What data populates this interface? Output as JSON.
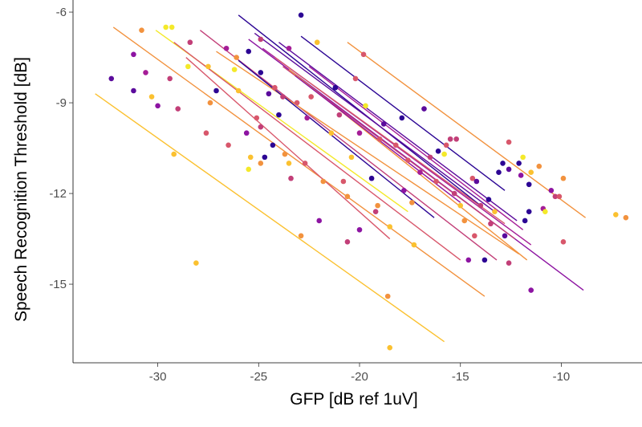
{
  "chart_data": {
    "type": "scatter",
    "title": "",
    "xlabel": "GFP [dB ref 1uV]",
    "ylabel": "Speech Recognition Threshold [dB]",
    "xlim": [
      -34.2,
      -6.0
    ],
    "ylim": [
      -17.6,
      -5.6
    ],
    "xticks": [
      -30,
      -25,
      -20,
      -15,
      -10
    ],
    "yticks": [
      -6,
      -9,
      -12,
      -15
    ],
    "x_tick_labels": [
      "-30",
      "-25",
      "-20",
      "-15",
      "-10"
    ],
    "y_tick_labels": [
      "-6",
      "-9",
      "-12",
      "-15"
    ],
    "grid": false,
    "legend": "none",
    "points": [
      {
        "x": -32.3,
        "y": -8.2,
        "color": "#5b0b9c"
      },
      {
        "x": -31.2,
        "y": -7.4,
        "color": "#8d14a2"
      },
      {
        "x": -31.2,
        "y": -8.6,
        "color": "#5b0b9c"
      },
      {
        "x": -30.8,
        "y": -6.6,
        "color": "#f2923e"
      },
      {
        "x": -30.6,
        "y": -8.0,
        "color": "#a51d97"
      },
      {
        "x": -30.3,
        "y": -8.8,
        "color": "#fbc130"
      },
      {
        "x": -30.0,
        "y": -9.1,
        "color": "#8d14a2"
      },
      {
        "x": -29.6,
        "y": -6.5,
        "color": "#f4e92a"
      },
      {
        "x": -29.3,
        "y": -6.5,
        "color": "#f4e92a"
      },
      {
        "x": -29.4,
        "y": -8.2,
        "color": "#c23f78"
      },
      {
        "x": -29.2,
        "y": -10.7,
        "color": "#fbc130"
      },
      {
        "x": -29.0,
        "y": -9.2,
        "color": "#c23f78"
      },
      {
        "x": -28.4,
        "y": -7.0,
        "color": "#c23f78"
      },
      {
        "x": -28.5,
        "y": -7.8,
        "color": "#f4e92a"
      },
      {
        "x": -28.1,
        "y": -14.3,
        "color": "#fbc130"
      },
      {
        "x": -27.6,
        "y": -10.0,
        "color": "#d8576b"
      },
      {
        "x": -27.5,
        "y": -7.8,
        "color": "#fbc130"
      },
      {
        "x": -27.4,
        "y": -9.0,
        "color": "#f2923e"
      },
      {
        "x": -27.1,
        "y": -8.6,
        "color": "#2c0594"
      },
      {
        "x": -26.6,
        "y": -7.2,
        "color": "#a51d97"
      },
      {
        "x": -26.5,
        "y": -10.4,
        "color": "#d8576b"
      },
      {
        "x": -26.2,
        "y": -7.9,
        "color": "#f4e92a"
      },
      {
        "x": -26.1,
        "y": -7.5,
        "color": "#f2923e"
      },
      {
        "x": -26.0,
        "y": -8.6,
        "color": "#fbc130"
      },
      {
        "x": -25.6,
        "y": -10.0,
        "color": "#8d14a2"
      },
      {
        "x": -25.4,
        "y": -10.8,
        "color": "#fbc130"
      },
      {
        "x": -25.5,
        "y": -11.2,
        "color": "#f4e92a"
      },
      {
        "x": -25.5,
        "y": -7.3,
        "color": "#2c0594"
      },
      {
        "x": -25.1,
        "y": -9.5,
        "color": "#d8576b"
      },
      {
        "x": -24.9,
        "y": -6.9,
        "color": "#c23f78"
      },
      {
        "x": -24.9,
        "y": -8.0,
        "color": "#2c0594"
      },
      {
        "x": -24.9,
        "y": -9.8,
        "color": "#c23f78"
      },
      {
        "x": -24.9,
        "y": -11.0,
        "color": "#f2923e"
      },
      {
        "x": -24.7,
        "y": -10.8,
        "color": "#2c0594"
      },
      {
        "x": -24.5,
        "y": -8.7,
        "color": "#5b0b9c"
      },
      {
        "x": -24.3,
        "y": -10.4,
        "color": "#2c0594"
      },
      {
        "x": -24.2,
        "y": -8.5,
        "color": "#d8576b"
      },
      {
        "x": -24.0,
        "y": -9.4,
        "color": "#2c0594"
      },
      {
        "x": -23.8,
        "y": -8.8,
        "color": "#c23f78"
      },
      {
        "x": -23.7,
        "y": -10.7,
        "color": "#f2923e"
      },
      {
        "x": -23.5,
        "y": -11.0,
        "color": "#fbc130"
      },
      {
        "x": -23.4,
        "y": -11.5,
        "color": "#c23f78"
      },
      {
        "x": -23.5,
        "y": -7.2,
        "color": "#a51d97"
      },
      {
        "x": -23.1,
        "y": -9.0,
        "color": "#d8576b"
      },
      {
        "x": -22.9,
        "y": -6.1,
        "color": "#2c0594"
      },
      {
        "x": -22.9,
        "y": -13.4,
        "color": "#f2923e"
      },
      {
        "x": -22.7,
        "y": -11.0,
        "color": "#d8576b"
      },
      {
        "x": -22.6,
        "y": -9.5,
        "color": "#a51d97"
      },
      {
        "x": -22.4,
        "y": -8.8,
        "color": "#d8576b"
      },
      {
        "x": -22.1,
        "y": -7.0,
        "color": "#fbc130"
      },
      {
        "x": -22.0,
        "y": -12.9,
        "color": "#8d14a2"
      },
      {
        "x": -21.8,
        "y": -11.6,
        "color": "#f2923e"
      },
      {
        "x": -21.4,
        "y": -10.0,
        "color": "#fbc130"
      },
      {
        "x": -21.2,
        "y": -8.5,
        "color": "#2c0594"
      },
      {
        "x": -21.0,
        "y": -9.4,
        "color": "#c23f78"
      },
      {
        "x": -20.8,
        "y": -11.6,
        "color": "#d8576b"
      },
      {
        "x": -20.6,
        "y": -12.1,
        "color": "#f2923e"
      },
      {
        "x": -20.6,
        "y": -13.6,
        "color": "#c23f78"
      },
      {
        "x": -20.4,
        "y": -10.8,
        "color": "#fbc130"
      },
      {
        "x": -20.2,
        "y": -8.2,
        "color": "#d8576b"
      },
      {
        "x": -20.0,
        "y": -10.0,
        "color": "#a51d97"
      },
      {
        "x": -20.0,
        "y": -13.2,
        "color": "#8d14a2"
      },
      {
        "x": -19.8,
        "y": -7.4,
        "color": "#d8576b"
      },
      {
        "x": -19.7,
        "y": -9.1,
        "color": "#f4e92a"
      },
      {
        "x": -19.4,
        "y": -11.5,
        "color": "#2c0594"
      },
      {
        "x": -19.2,
        "y": -12.6,
        "color": "#c23f78"
      },
      {
        "x": -19.1,
        "y": -12.4,
        "color": "#f2923e"
      },
      {
        "x": -19.0,
        "y": -10.2,
        "color": "#d8576b"
      },
      {
        "x": -18.8,
        "y": -9.7,
        "color": "#5b0b9c"
      },
      {
        "x": -18.6,
        "y": -15.4,
        "color": "#f2923e"
      },
      {
        "x": -18.5,
        "y": -17.1,
        "color": "#fbc130"
      },
      {
        "x": -18.5,
        "y": -13.1,
        "color": "#fbc130"
      },
      {
        "x": -18.2,
        "y": -10.4,
        "color": "#d8576b"
      },
      {
        "x": -17.9,
        "y": -9.5,
        "color": "#2c0594"
      },
      {
        "x": -17.8,
        "y": -11.9,
        "color": "#8d14a2"
      },
      {
        "x": -17.6,
        "y": -10.9,
        "color": "#d8576b"
      },
      {
        "x": -17.4,
        "y": -12.3,
        "color": "#f2923e"
      },
      {
        "x": -17.3,
        "y": -13.7,
        "color": "#fbc130"
      },
      {
        "x": -17.0,
        "y": -11.3,
        "color": "#a51d97"
      },
      {
        "x": -16.8,
        "y": -9.2,
        "color": "#5b0b9c"
      },
      {
        "x": -16.5,
        "y": -10.8,
        "color": "#c23f78"
      },
      {
        "x": -16.2,
        "y": -11.6,
        "color": "#d8576b"
      },
      {
        "x": -16.1,
        "y": -10.6,
        "color": "#2c0594"
      },
      {
        "x": -15.8,
        "y": -10.7,
        "color": "#f4e92a"
      },
      {
        "x": -15.7,
        "y": -10.4,
        "color": "#d8576b"
      },
      {
        "x": -15.5,
        "y": -10.2,
        "color": "#c23f78"
      },
      {
        "x": -15.3,
        "y": -12.0,
        "color": "#c23f78"
      },
      {
        "x": -15.2,
        "y": -10.2,
        "color": "#c23f78"
      },
      {
        "x": -15.0,
        "y": -12.4,
        "color": "#fbc130"
      },
      {
        "x": -14.8,
        "y": -12.9,
        "color": "#f2923e"
      },
      {
        "x": -14.6,
        "y": -14.2,
        "color": "#8d14a2"
      },
      {
        "x": -14.4,
        "y": -11.5,
        "color": "#d8576b"
      },
      {
        "x": -14.3,
        "y": -13.4,
        "color": "#d8576b"
      },
      {
        "x": -14.2,
        "y": -11.6,
        "color": "#5b0b9c"
      },
      {
        "x": -14.0,
        "y": -12.4,
        "color": "#c23f78"
      },
      {
        "x": -13.8,
        "y": -14.2,
        "color": "#2c0594"
      },
      {
        "x": -13.6,
        "y": -12.2,
        "color": "#2c0594"
      },
      {
        "x": -13.5,
        "y": -13.0,
        "color": "#c23f78"
      },
      {
        "x": -13.3,
        "y": -12.6,
        "color": "#fbc130"
      },
      {
        "x": -13.1,
        "y": -11.3,
        "color": "#2c0594"
      },
      {
        "x": -12.9,
        "y": -11.0,
        "color": "#2c0594"
      },
      {
        "x": -12.8,
        "y": -13.4,
        "color": "#5b0b9c"
      },
      {
        "x": -12.6,
        "y": -11.2,
        "color": "#5b0b9c"
      },
      {
        "x": -12.6,
        "y": -10.3,
        "color": "#d8576b"
      },
      {
        "x": -12.6,
        "y": -14.3,
        "color": "#c23f78"
      },
      {
        "x": -12.1,
        "y": -11.0,
        "color": "#2c0594"
      },
      {
        "x": -12.0,
        "y": -11.4,
        "color": "#8d14a2"
      },
      {
        "x": -11.9,
        "y": -10.8,
        "color": "#f4e92a"
      },
      {
        "x": -11.8,
        "y": -12.9,
        "color": "#2c0594"
      },
      {
        "x": -11.6,
        "y": -11.7,
        "color": "#2c0594"
      },
      {
        "x": -11.6,
        "y": -12.6,
        "color": "#2c0594"
      },
      {
        "x": -11.5,
        "y": -15.2,
        "color": "#8d14a2"
      },
      {
        "x": -11.5,
        "y": -11.3,
        "color": "#fbc130"
      },
      {
        "x": -11.1,
        "y": -11.1,
        "color": "#f2923e"
      },
      {
        "x": -10.9,
        "y": -12.5,
        "color": "#a51d97"
      },
      {
        "x": -10.8,
        "y": -12.6,
        "color": "#f4e92a"
      },
      {
        "x": -10.5,
        "y": -11.9,
        "color": "#8d14a2"
      },
      {
        "x": -10.3,
        "y": -12.1,
        "color": "#c23f78"
      },
      {
        "x": -10.1,
        "y": -12.1,
        "color": "#d8576b"
      },
      {
        "x": -9.9,
        "y": -11.5,
        "color": "#f2923e"
      },
      {
        "x": -9.9,
        "y": -13.6,
        "color": "#d8576b"
      },
      {
        "x": -7.3,
        "y": -12.7,
        "color": "#fbc130"
      },
      {
        "x": -6.8,
        "y": -12.8,
        "color": "#f2923e"
      }
    ],
    "fit_lines": [
      {
        "x1": -33.1,
        "y1": -8.7,
        "x2": -15.8,
        "y2": -16.9,
        "color": "#fbc130"
      },
      {
        "x1": -32.2,
        "y1": -6.5,
        "x2": -13.8,
        "y2": -15.4,
        "color": "#f2923e"
      },
      {
        "x1": -30.1,
        "y1": -6.6,
        "x2": -17.6,
        "y2": -12.6,
        "color": "#f4e92a"
      },
      {
        "x1": -29.2,
        "y1": -7.0,
        "x2": -15.0,
        "y2": -14.2,
        "color": "#d8576b"
      },
      {
        "x1": -28.6,
        "y1": -7.5,
        "x2": -18.5,
        "y2": -13.5,
        "color": "#d8576b"
      },
      {
        "x1": -27.9,
        "y1": -6.6,
        "x2": -13.2,
        "y2": -14.2,
        "color": "#c23f78"
      },
      {
        "x1": -27.1,
        "y1": -7.3,
        "x2": -12.1,
        "y2": -14.0,
        "color": "#f2923e"
      },
      {
        "x1": -26.0,
        "y1": -6.1,
        "x2": -14.0,
        "y2": -12.4,
        "color": "#2c0594"
      },
      {
        "x1": -26.0,
        "y1": -7.6,
        "x2": -16.3,
        "y2": -12.8,
        "color": "#2c0594"
      },
      {
        "x1": -25.5,
        "y1": -6.9,
        "x2": -8.9,
        "y2": -15.2,
        "color": "#8d14a2"
      },
      {
        "x1": -25.2,
        "y1": -6.7,
        "x2": -13.3,
        "y2": -12.6,
        "color": "#5b0b9c"
      },
      {
        "x1": -24.8,
        "y1": -7.2,
        "x2": -11.5,
        "y2": -13.7,
        "color": "#a51d97"
      },
      {
        "x1": -24.2,
        "y1": -7.5,
        "x2": -12.8,
        "y2": -13.0,
        "color": "#d8576b"
      },
      {
        "x1": -24.0,
        "y1": -7.0,
        "x2": -12.2,
        "y2": -12.9,
        "color": "#5b0b9c"
      },
      {
        "x1": -23.8,
        "y1": -7.8,
        "x2": -12.3,
        "y2": -13.5,
        "color": "#c23f78"
      },
      {
        "x1": -23.5,
        "y1": -7.9,
        "x2": -11.7,
        "y2": -14.2,
        "color": "#f2923e"
      },
      {
        "x1": -23.2,
        "y1": -8.1,
        "x2": -15.0,
        "y2": -12.3,
        "color": "#8d14a2"
      },
      {
        "x1": -22.9,
        "y1": -6.8,
        "x2": -12.8,
        "y2": -11.9,
        "color": "#2c0594"
      },
      {
        "x1": -22.5,
        "y1": -7.8,
        "x2": -11.9,
        "y2": -13.2,
        "color": "#a51d97"
      },
      {
        "x1": -20.6,
        "y1": -7.0,
        "x2": -8.8,
        "y2": -12.8,
        "color": "#f2923e"
      }
    ]
  }
}
